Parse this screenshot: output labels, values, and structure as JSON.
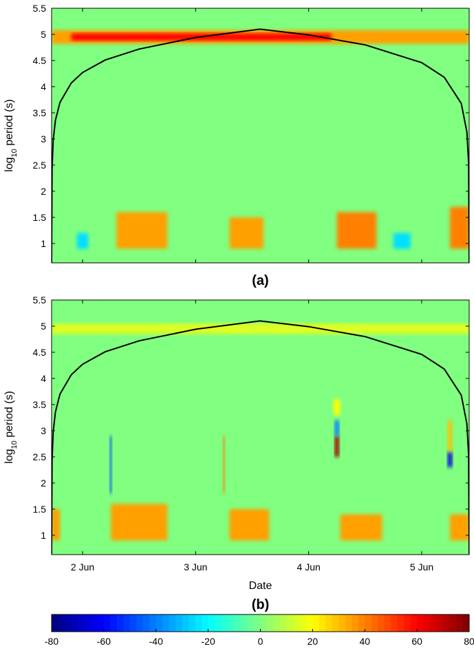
{
  "chart_data": [
    {
      "type": "heatmap",
      "title": "(a)",
      "ylabel": {
        "base": "log",
        "sub": "10",
        "rest": " period (s)"
      },
      "xlim": [
        1.726,
        5.42
      ],
      "xticks": [
        2,
        3,
        4,
        5
      ],
      "ylim": [
        0.63,
        5.5
      ],
      "yticks": [
        1,
        1.5,
        2,
        2.5,
        3,
        3.5,
        4,
        4.5,
        5,
        5.5
      ],
      "features": [
        {
          "x": [
            1.726,
            5.42
          ],
          "y": [
            4.82,
            5.08
          ],
          "value": 35
        },
        {
          "x": [
            1.9,
            4.2
          ],
          "y": [
            4.88,
            5.02
          ],
          "value": 60
        },
        {
          "x": [
            2.3,
            2.75
          ],
          "y": [
            0.9,
            1.6
          ],
          "value": 35
        },
        {
          "x": [
            3.3,
            3.6
          ],
          "y": [
            0.9,
            1.5
          ],
          "value": 35
        },
        {
          "x": [
            4.25,
            4.6
          ],
          "y": [
            0.9,
            1.6
          ],
          "value": 40
        },
        {
          "x": [
            5.25,
            5.42
          ],
          "y": [
            0.9,
            1.7
          ],
          "value": 40
        },
        {
          "x": [
            1.95,
            2.05
          ],
          "y": [
            0.9,
            1.2
          ],
          "value": -25
        },
        {
          "x": [
            4.75,
            4.9
          ],
          "y": [
            0.9,
            1.2
          ],
          "value": -25
        }
      ],
      "coi": {
        "color": "#000000",
        "x": [
          1.726,
          1.73,
          1.74,
          1.76,
          1.8,
          1.9,
          2.0,
          2.2,
          2.5,
          3.0,
          3.57,
          4.0,
          4.5,
          5.0,
          5.2,
          5.35,
          5.4,
          5.415,
          5.42
        ],
        "y": [
          0.63,
          2.43,
          2.98,
          3.36,
          3.7,
          4.07,
          4.27,
          4.51,
          4.72,
          4.94,
          5.1,
          4.99,
          4.8,
          4.46,
          4.18,
          3.68,
          3.13,
          2.53,
          0.63
        ]
      }
    },
    {
      "type": "heatmap",
      "title": "(b)",
      "xlabel": "Date",
      "ylabel": {
        "base": "log",
        "sub": "10",
        "rest": " period (s)"
      },
      "xlim": [
        1.726,
        5.42
      ],
      "xticks": [
        {
          "value": 2,
          "label": "2 Jun"
        },
        {
          "value": 3,
          "label": "3 Jun"
        },
        {
          "value": 4,
          "label": "4 Jun"
        },
        {
          "value": 5,
          "label": "5 Jun"
        }
      ],
      "ylim": [
        0.63,
        5.5
      ],
      "yticks": [
        1,
        1.5,
        2,
        2.5,
        3,
        3.5,
        4,
        4.5,
        5,
        5.5
      ],
      "features": [
        {
          "x": [
            1.726,
            5.42
          ],
          "y": [
            4.85,
            5.05
          ],
          "value": 15
        },
        {
          "x": [
            1.726,
            1.8
          ],
          "y": [
            0.9,
            1.5
          ],
          "value": 35
        },
        {
          "x": [
            2.25,
            2.75
          ],
          "y": [
            0.9,
            1.6
          ],
          "value": 35
        },
        {
          "x": [
            3.3,
            3.65
          ],
          "y": [
            0.9,
            1.5
          ],
          "value": 35
        },
        {
          "x": [
            4.28,
            4.65
          ],
          "y": [
            0.9,
            1.4
          ],
          "value": 35
        },
        {
          "x": [
            5.25,
            5.42
          ],
          "y": [
            0.9,
            1.4
          ],
          "value": 35
        },
        {
          "x": [
            2.24,
            2.26
          ],
          "y": [
            1.8,
            2.9
          ],
          "value": -50
        },
        {
          "x": [
            3.24,
            3.26
          ],
          "y": [
            1.8,
            2.9
          ],
          "value": 40
        },
        {
          "x": [
            4.23,
            4.27
          ],
          "y": [
            2.5,
            2.9
          ],
          "value": 75
        },
        {
          "x": [
            4.23,
            4.27
          ],
          "y": [
            2.9,
            3.2
          ],
          "value": -40
        },
        {
          "x": [
            4.22,
            4.28
          ],
          "y": [
            3.3,
            3.6
          ],
          "value": 20
        },
        {
          "x": [
            5.23,
            5.27
          ],
          "y": [
            2.3,
            2.6
          ],
          "value": -65
        },
        {
          "x": [
            5.23,
            5.27
          ],
          "y": [
            2.6,
            3.2
          ],
          "value": 30
        }
      ],
      "coi": {
        "color": "#000000",
        "x": [
          1.726,
          1.73,
          1.74,
          1.76,
          1.8,
          1.9,
          2.0,
          2.2,
          2.5,
          3.0,
          3.57,
          4.0,
          4.5,
          5.0,
          5.2,
          5.35,
          5.4,
          5.415,
          5.42
        ],
        "y": [
          0.63,
          2.43,
          2.98,
          3.36,
          3.7,
          4.07,
          4.27,
          4.51,
          4.72,
          4.94,
          5.1,
          4.99,
          4.8,
          4.46,
          4.18,
          3.68,
          3.13,
          2.53,
          0.63
        ]
      }
    },
    {
      "type": "colorbar",
      "lim": [
        -80,
        80
      ],
      "ticks": [
        -80,
        -60,
        -40,
        -20,
        0,
        20,
        40,
        60,
        80
      ]
    }
  ]
}
